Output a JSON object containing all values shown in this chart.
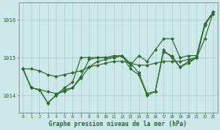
{
  "xlabel": "Graphe pression niveau de la mer (hPa)",
  "background_color": "#cce8e8",
  "grid_color": "#aacfcf",
  "line_color": "#2d6a2d",
  "x_ticks": [
    0,
    1,
    2,
    3,
    4,
    5,
    6,
    7,
    8,
    9,
    10,
    11,
    12,
    13,
    14,
    15,
    16,
    17,
    18,
    19,
    20,
    21,
    22,
    23
  ],
  "ylim": [
    1013.55,
    1016.45
  ],
  "yticks": [
    1014,
    1015,
    1016
  ],
  "figsize": [
    2.8,
    1.65
  ],
  "dpi": 100,
  "series": [
    [
      1014.7,
      1014.7,
      1014.65,
      1014.55,
      1014.5,
      1014.55,
      1014.6,
      1014.65,
      1014.75,
      1014.8,
      1014.85,
      1014.9,
      1014.9,
      1014.85,
      1014.8,
      1014.8,
      1014.85,
      1014.9,
      1014.9,
      1014.9,
      1014.95,
      1015.0,
      1015.5,
      1016.2
    ],
    [
      1014.7,
      1014.2,
      1014.15,
      1014.1,
      1014.05,
      1014.1,
      1014.2,
      1014.45,
      1014.75,
      1014.9,
      1014.95,
      1015.0,
      1015.05,
      1014.85,
      1014.6,
      1014.05,
      1014.1,
      1015.15,
      1015.05,
      1014.75,
      1014.85,
      1015.0,
      1015.85,
      1016.2
    ],
    [
      1014.7,
      1014.2,
      1014.15,
      1013.8,
      1014.0,
      1014.15,
      1014.2,
      1014.5,
      1014.95,
      1015.0,
      1015.0,
      1015.0,
      1015.05,
      1014.7,
      1014.55,
      1014.0,
      1014.1,
      1015.2,
      1015.0,
      1014.75,
      1014.9,
      1015.0,
      1015.9,
      1016.2
    ],
    [
      1014.7,
      1014.2,
      1014.15,
      1013.8,
      1014.0,
      1014.2,
      1014.35,
      1015.0,
      1015.0,
      1015.0,
      1015.0,
      1015.05,
      1015.05,
      1014.8,
      1015.05,
      1014.9,
      1015.2,
      1015.5,
      1015.5,
      1015.0,
      1015.05,
      1015.05,
      1015.9,
      1016.15
    ]
  ]
}
